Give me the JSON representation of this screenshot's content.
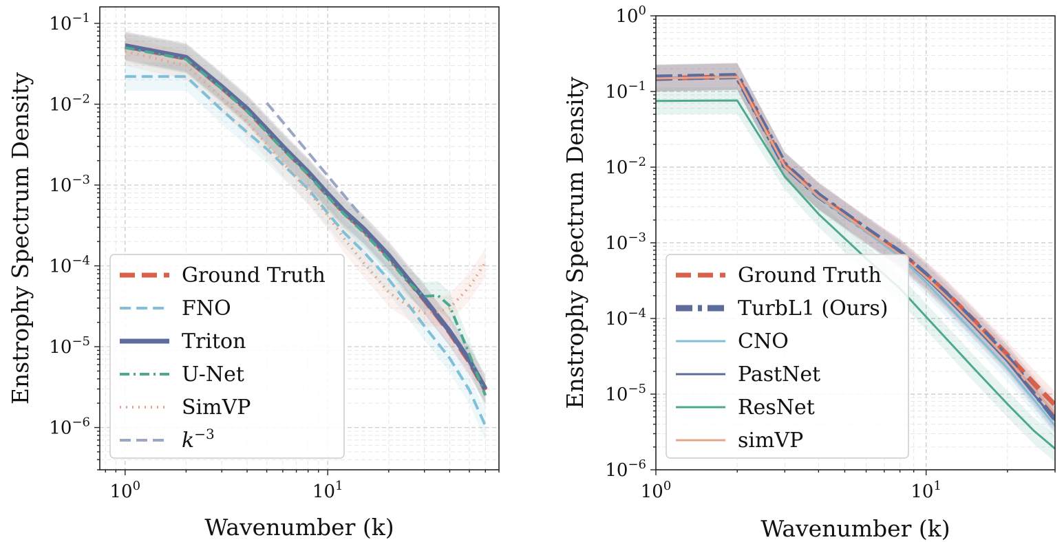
{
  "chart_data": [
    {
      "type": "line",
      "xscale": "log",
      "yscale": "log",
      "xlabel": "Wavenumber (k)",
      "ylabel": "Enstrophy Spectrum Density",
      "xlim": [
        0.75,
        70
      ],
      "ylim": [
        3e-07,
        0.16
      ],
      "x_ticks": [
        {
          "v": 1,
          "base": "10",
          "exp": "0"
        },
        {
          "v": 10,
          "base": "10",
          "exp": "1"
        }
      ],
      "y_ticks": [
        {
          "v": 0.1,
          "base": "10",
          "exp": "−1"
        },
        {
          "v": 0.01,
          "base": "10",
          "exp": "−2"
        },
        {
          "v": 0.001,
          "base": "10",
          "exp": "−3"
        },
        {
          "v": 0.0001,
          "base": "10",
          "exp": "−4"
        },
        {
          "v": 1e-05,
          "base": "10",
          "exp": "−5"
        },
        {
          "v": 1e-06,
          "base": "10",
          "exp": "−6"
        }
      ],
      "grid": true,
      "legend_position": "lower-left",
      "series": [
        {
          "name": "Ground Truth",
          "color": "#d9604b",
          "style": "dashed-thick",
          "x": [
            1,
            2,
            3,
            4,
            5,
            6,
            8,
            10,
            12,
            15,
            20,
            25,
            30,
            40,
            50,
            60
          ],
          "y": [
            0.052,
            0.037,
            0.016,
            0.0085,
            0.0047,
            0.0029,
            0.0014,
            0.00075,
            0.00046,
            0.00028,
            0.00013,
            6.6e-05,
            3.8e-05,
            1.5e-05,
            6.5e-06,
            2.9e-06
          ]
        },
        {
          "name": "FNO",
          "color": "#7fbfd8",
          "style": "dashed",
          "x": [
            1,
            2,
            3,
            4,
            5,
            6,
            8,
            10,
            12,
            15,
            20,
            25,
            30,
            40,
            50,
            60
          ],
          "y": [
            0.022,
            0.022,
            0.0085,
            0.0045,
            0.0028,
            0.0018,
            0.0009,
            0.00045,
            0.00026,
            0.00015,
            6.8e-05,
            3.3e-05,
            1.8e-05,
            7.2e-06,
            2.9e-06,
            1.05e-06
          ]
        },
        {
          "name": "Triton",
          "color": "#5f6b9a",
          "style": "solid-thick",
          "x": [
            1,
            2,
            3,
            4,
            5,
            6,
            8,
            10,
            12,
            15,
            20,
            25,
            30,
            40,
            50,
            60
          ],
          "y": [
            0.053,
            0.038,
            0.0165,
            0.0088,
            0.0049,
            0.003,
            0.00145,
            0.00078,
            0.00048,
            0.00029,
            0.000135,
            6.8e-05,
            3.9e-05,
            1.55e-05,
            6.8e-06,
            3e-06
          ]
        },
        {
          "name": "U-Net",
          "color": "#4ea88f",
          "style": "dashdot",
          "x": [
            1,
            2,
            3,
            4,
            5,
            6,
            8,
            10,
            12,
            15,
            20,
            25,
            30,
            35,
            40,
            50,
            60
          ],
          "y": [
            0.05,
            0.036,
            0.0155,
            0.0082,
            0.0045,
            0.0028,
            0.00135,
            0.00072,
            0.00044,
            0.00026,
            0.00012,
            6.2e-05,
            4.2e-05,
            4.3e-05,
            3.2e-05,
            8e-06,
            2.5e-06
          ]
        },
        {
          "name": "SimVP",
          "color": "#e8a48a",
          "style": "dotted",
          "x": [
            1,
            2,
            3,
            4,
            5,
            6,
            8,
            10,
            12,
            15,
            20,
            25,
            30,
            35,
            40,
            50,
            60
          ],
          "y": [
            0.045,
            0.03,
            0.012,
            0.006,
            0.0032,
            0.0019,
            0.00085,
            0.00042,
            0.00022,
            0.00011,
            4.7e-05,
            3.2e-05,
            2.6e-05,
            2.7e-05,
            3e-05,
            5.5e-05,
            0.00011
          ]
        },
        {
          "name": "k^{-3}",
          "color": "#9aa6c4",
          "style": "dashed",
          "x": [
            5,
            15
          ],
          "y": [
            0.0104,
            0.000385
          ]
        }
      ]
    },
    {
      "type": "line",
      "xscale": "log",
      "yscale": "log",
      "xlabel": "Wavenumber (k)",
      "ylabel": "Enstrophy Spectrum Density",
      "xlim": [
        1,
        30
      ],
      "ylim": [
        1e-06,
        1
      ],
      "x_ticks": [
        {
          "v": 1,
          "base": "10",
          "exp": "0"
        },
        {
          "v": 10,
          "base": "10",
          "exp": "1"
        }
      ],
      "y_ticks": [
        {
          "v": 1,
          "base": "10",
          "exp": "0"
        },
        {
          "v": 0.1,
          "base": "10",
          "exp": "−1"
        },
        {
          "v": 0.01,
          "base": "10",
          "exp": "−2"
        },
        {
          "v": 0.001,
          "base": "10",
          "exp": "−3"
        },
        {
          "v": 0.0001,
          "base": "10",
          "exp": "−4"
        },
        {
          "v": 1e-05,
          "base": "10",
          "exp": "−5"
        },
        {
          "v": 1e-06,
          "base": "10",
          "exp": "−6"
        }
      ],
      "grid": true,
      "legend_position": "lower-left",
      "series": [
        {
          "name": "Ground Truth",
          "color": "#d9604b",
          "style": "dashed-thick",
          "x": [
            1,
            2,
            3,
            4,
            6,
            8,
            10,
            12,
            15,
            20,
            25,
            30
          ],
          "y": [
            0.148,
            0.158,
            0.0105,
            0.0042,
            0.0015,
            0.00075,
            0.00038,
            0.00021,
            9.5e-05,
            3.3e-05,
            1.4e-05,
            7.2e-06
          ]
        },
        {
          "name": "TurbL1 (Ours)",
          "color": "#5f6b9a",
          "style": "dashdot-thick",
          "x": [
            1,
            2,
            3,
            4,
            6,
            8,
            10,
            12,
            15,
            20,
            25,
            30
          ],
          "y": [
            0.152,
            0.16,
            0.0106,
            0.0042,
            0.0015,
            0.00074,
            0.00037,
            0.0002,
            9e-05,
            3e-05,
            1.1e-05,
            4.8e-06
          ]
        },
        {
          "name": "CNO",
          "color": "#7fbfd8",
          "style": "solid",
          "x": [
            1,
            2,
            3,
            4,
            6,
            8,
            10,
            12,
            15,
            20,
            25,
            30
          ],
          "y": [
            0.15,
            0.155,
            0.0102,
            0.004,
            0.0014,
            0.00065,
            0.0003,
            0.00015,
            6.5e-05,
            2.2e-05,
            8.5e-06,
            3.8e-06
          ]
        },
        {
          "name": "PastNet",
          "color": "#5f6b9a",
          "style": "solid",
          "x": [
            1,
            2,
            3,
            4,
            6,
            8,
            10,
            12,
            15,
            20,
            25,
            30
          ],
          "y": [
            0.15,
            0.157,
            0.0104,
            0.0041,
            0.00145,
            0.0007,
            0.00034,
            0.00018,
            8e-05,
            2.7e-05,
            1e-05,
            4.5e-06
          ]
        },
        {
          "name": "ResNet",
          "color": "#4ea88f",
          "style": "solid",
          "x": [
            1,
            2,
            3,
            4,
            6,
            8,
            10,
            12,
            15,
            20,
            25,
            30
          ],
          "y": [
            0.075,
            0.076,
            0.0075,
            0.0024,
            0.00062,
            0.00025,
            0.000105,
            5.2e-05,
            2.2e-05,
            7.4e-06,
            3.3e-06,
            1.9e-06
          ]
        },
        {
          "name": "simVP",
          "color": "#e8a48a",
          "style": "solid",
          "x": [
            1,
            2,
            3,
            4,
            6,
            8,
            10,
            12,
            15,
            20,
            25,
            30
          ],
          "y": [
            0.149,
            0.156,
            0.0103,
            0.0041,
            0.00145,
            0.0007,
            0.00035,
            0.00019,
            8.5e-05,
            2.9e-05,
            1.2e-05,
            5.5e-06
          ]
        }
      ]
    }
  ]
}
